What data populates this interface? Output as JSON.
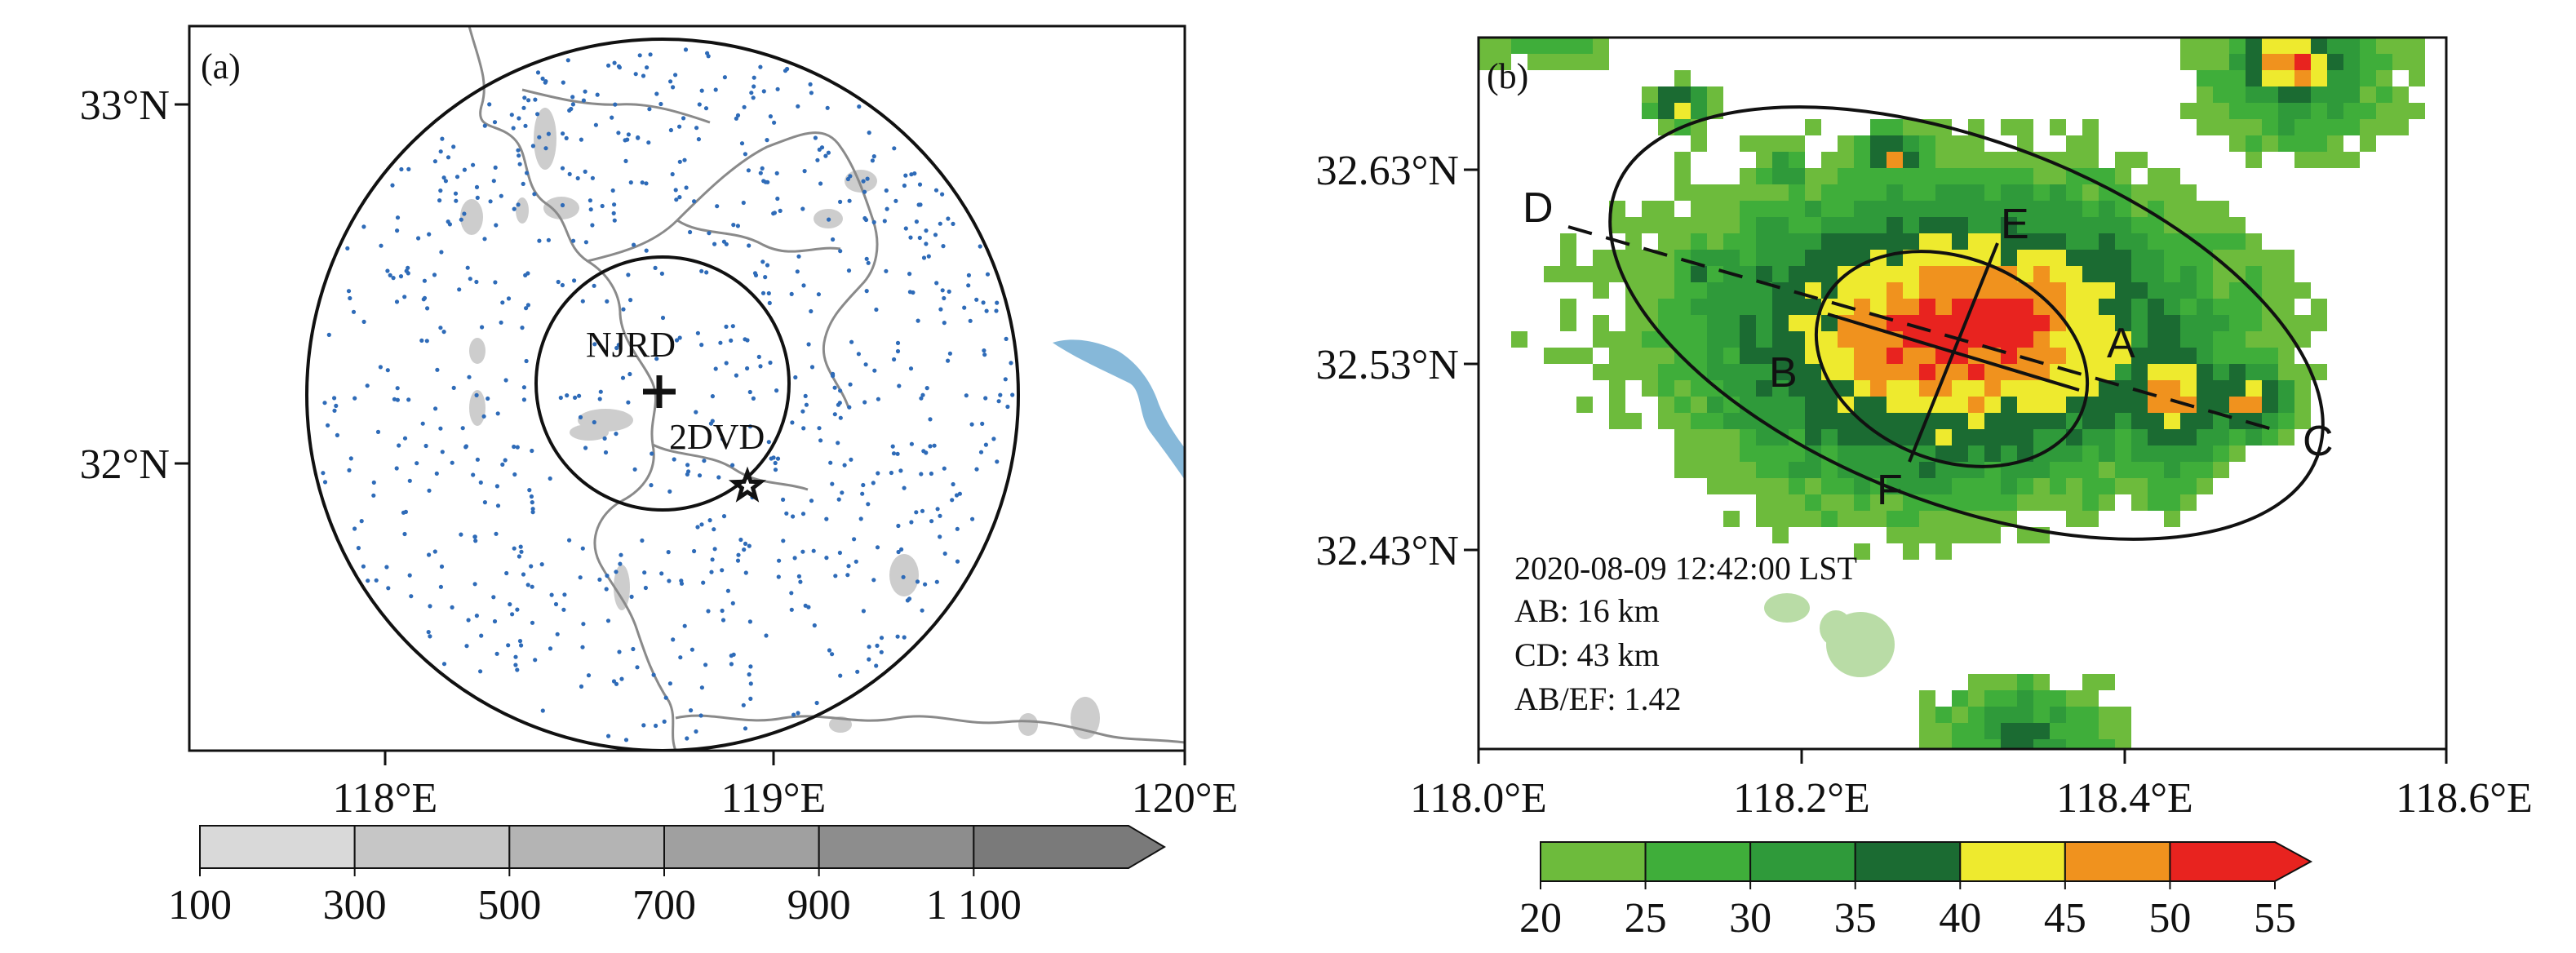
{
  "panels": [
    {
      "id": "a",
      "label": "(a)",
      "x_ticks": [
        "118°E",
        "119°E",
        "120°E"
      ],
      "y_ticks": [
        "33°N",
        "32°N"
      ],
      "markers": [
        {
          "name": "NJRD",
          "symbol": "plus-icon"
        },
        {
          "name": "2DVD",
          "symbol": "star-icon"
        }
      ],
      "colorbar": {
        "ticks": [
          "100",
          "300",
          "500",
          "700",
          "900",
          "1 100"
        ],
        "colors": [
          "#d9d9d9",
          "#c6c6c6",
          "#b4b4b4",
          "#a0a0a0",
          "#8d8d8d",
          "#7a7a7a"
        ]
      }
    },
    {
      "id": "b",
      "label": "(b)",
      "x_ticks": [
        "118.0°E",
        "118.2°E",
        "118.4°E",
        "118.6°E"
      ],
      "y_ticks": [
        "32.63°N",
        "32.53°N",
        "32.43°N"
      ],
      "points": [
        "A",
        "B",
        "C",
        "D",
        "E",
        "F"
      ],
      "annotation": [
        "2020-08-09 12:42:00 LST",
        "AB: 16 km",
        "CD: 43 km",
        "AB/EF: 1.42"
      ],
      "colorbar": {
        "ticks": [
          "20",
          "25",
          "30",
          "35",
          "40",
          "45",
          "50",
          "55"
        ],
        "colors": [
          "#6dbb3c",
          "#3fae3a",
          "#2f9a3a",
          "#1b6b32",
          "#eeea2e",
          "#f0921e",
          "#e8231f"
        ]
      }
    }
  ],
  "colors": {
    "station": "#2e6bb8",
    "river": "#86b8d9",
    "terrain": "#cdcdcd",
    "border": "#8a8a8a"
  }
}
